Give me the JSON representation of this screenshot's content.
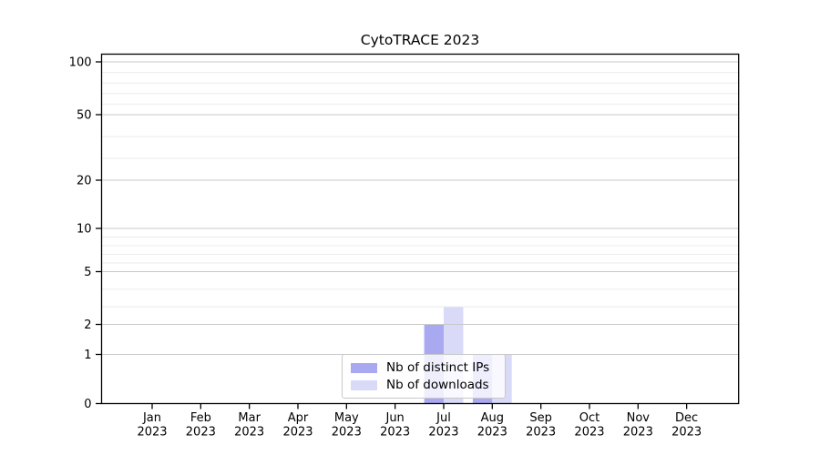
{
  "chart_data": {
    "type": "bar",
    "title": "CytoTRACE 2023",
    "categories": [
      "Jan 2023",
      "Feb 2023",
      "Mar 2023",
      "Apr 2023",
      "May 2023",
      "Jun 2023",
      "Jul 2023",
      "Aug 2023",
      "Sep 2023",
      "Oct 2023",
      "Nov 2023",
      "Dec 2023"
    ],
    "series": [
      {
        "name": "Nb of distinct IPs",
        "color": "#a9a9f2",
        "values": [
          0,
          0,
          0,
          0,
          0,
          0,
          2,
          1,
          0,
          0,
          0,
          0
        ]
      },
      {
        "name": "Nb of downloads",
        "color": "#d9d9f8",
        "values": [
          0,
          0,
          0,
          0,
          0,
          0,
          3,
          1,
          0,
          0,
          0,
          0
        ]
      }
    ],
    "y_axis": {
      "ticks": [
        0,
        1,
        2,
        5,
        10,
        20,
        50,
        100
      ],
      "minor_ticks": [
        3,
        4,
        6,
        7,
        8,
        9,
        30,
        40,
        60,
        70,
        80,
        90
      ],
      "scale": "log-like",
      "ylim": [
        0,
        110
      ]
    },
    "legend_position": "bottom-center",
    "grid": "horizontal"
  },
  "colors": {
    "grid_major": "#c9c9c9",
    "grid_minor": "#ebebeb",
    "axis": "#000000",
    "legend_border": "#c9c9c9",
    "background": "#ffffff",
    "text": "#000000"
  }
}
